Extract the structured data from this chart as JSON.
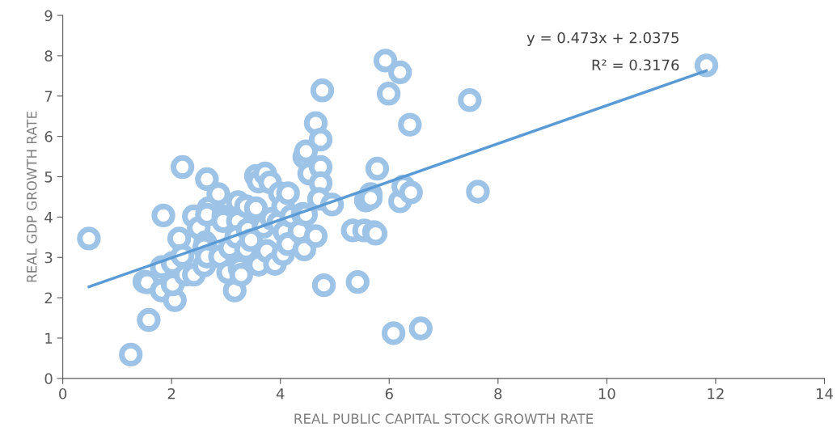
{
  "chart_data": {
    "type": "scatter",
    "xlabel": "REAL PUBLIC CAPITAL STOCK GROWTH RATE",
    "ylabel": "REAL GDP GROWTH RATE",
    "xlim": [
      0,
      14
    ],
    "xticks": [
      0,
      2,
      4,
      6,
      8,
      10,
      12,
      14
    ],
    "ylim": [
      0,
      9
    ],
    "yticks": [
      0,
      1,
      2,
      3,
      4,
      5,
      6,
      7,
      8,
      9
    ],
    "grid": false,
    "marker": "circle",
    "annotations": [
      "y = 0.473x + 2.0375",
      "R² = 0.3176"
    ],
    "series": [
      {
        "color": "#9dc3e6",
        "x": [
          0.48,
          1.25,
          1.58,
          1.5,
          1.55,
          1.82,
          1.85,
          1.82,
          2.06,
          2.2,
          2.14,
          2.02,
          2.02,
          2.2,
          2.26,
          2.41,
          2.5,
          2.41,
          2.65,
          2.68,
          2.65,
          2.62,
          2.6,
          2.6,
          2.65,
          2.86,
          2.95,
          2.95,
          2.89,
          3.07,
          3.04,
          3.16,
          3.22,
          3.22,
          3.19,
          3.25,
          3.28,
          3.37,
          3.4,
          3.37,
          3.46,
          3.55,
          3.55,
          3.6,
          3.6,
          3.72,
          3.69,
          3.75,
          3.81,
          3.84,
          3.9,
          3.96,
          3.99,
          4.05,
          4.05,
          4.08,
          4.14,
          4.14,
          4.2,
          4.35,
          4.41,
          4.47,
          4.44,
          4.44,
          4.47,
          4.53,
          4.65,
          4.65,
          4.74,
          4.77,
          4.74,
          4.74,
          4.71,
          4.8,
          4.95,
          5.33,
          5.42,
          5.54,
          5.57,
          5.66,
          5.66,
          5.72,
          5.75,
          5.78,
          5.93,
          5.99,
          6.08,
          6.2,
          6.2,
          6.26,
          6.38,
          6.4,
          6.58,
          7.48,
          7.63,
          11.83
        ],
        "values": [
          3.47,
          0.59,
          1.45,
          2.4,
          2.38,
          2.18,
          4.04,
          2.76,
          1.94,
          5.24,
          3.47,
          2.86,
          2.33,
          3.04,
          2.57,
          4.02,
          3.73,
          2.57,
          4.94,
          4.22,
          4.06,
          3.37,
          3.24,
          2.8,
          3.02,
          4.57,
          4.02,
          3.9,
          3.02,
          3.24,
          2.63,
          2.18,
          4.37,
          3.9,
          3.51,
          2.73,
          2.57,
          4.27,
          3.69,
          3.2,
          3.43,
          5.02,
          4.22,
          4.88,
          2.82,
          5.08,
          3.76,
          3.16,
          4.86,
          3.96,
          2.84,
          3.86,
          4.59,
          4.27,
          3.08,
          3.63,
          4.59,
          3.33,
          4.02,
          3.65,
          4.08,
          4.06,
          3.2,
          5.49,
          5.63,
          5.08,
          6.33,
          3.53,
          5.92,
          7.14,
          5.24,
          4.84,
          4.45,
          2.31,
          4.31,
          3.67,
          2.39,
          3.67,
          4.41,
          4.57,
          4.47,
          3.63,
          3.59,
          5.2,
          7.88,
          7.06,
          1.12,
          7.59,
          4.39,
          4.76,
          6.29,
          4.61,
          1.24,
          6.9,
          4.63,
          7.76
        ]
      },
      {
        "type": "line",
        "color": "#5b9bd5",
        "marker": "none",
        "line_style": "solid",
        "x": [
          0.48,
          11.83
        ],
        "values": [
          2.27,
          7.63
        ]
      }
    ]
  }
}
